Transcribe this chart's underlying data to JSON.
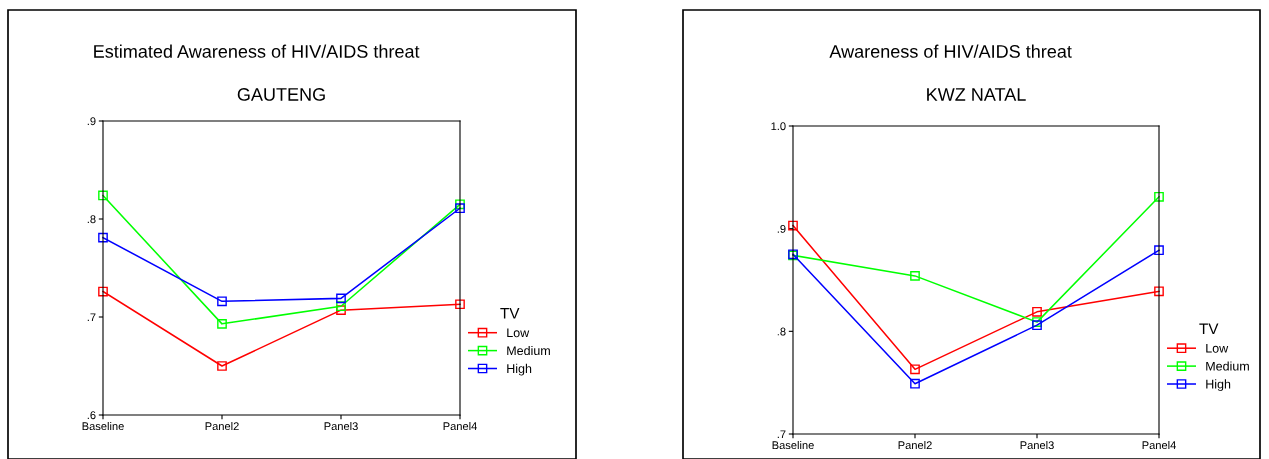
{
  "chart_data": [
    {
      "type": "line",
      "title": "Estimated Awareness of HIV/AIDS threat",
      "subtitle": "GAUTENG",
      "legend_title": "TV",
      "categories": [
        "Baseline",
        "Panel2",
        "Panel3",
        "Panel4"
      ],
      "ylim": [
        0.6,
        0.9
      ],
      "yticks": [
        {
          "value": 0.6,
          "label": ".6"
        },
        {
          "value": 0.7,
          "label": ".7"
        },
        {
          "value": 0.8,
          "label": ".8"
        },
        {
          "value": 0.9,
          "label": ".9"
        }
      ],
      "marker": "square",
      "grid": false,
      "legend": "right",
      "series": [
        {
          "name": "Low",
          "color": "#ff0000",
          "values": [
            0.726,
            0.65,
            0.707,
            0.713
          ]
        },
        {
          "name": "Medium",
          "color": "#00ff00",
          "values": [
            0.824,
            0.693,
            0.711,
            0.815
          ]
        },
        {
          "name": "High",
          "color": "#0000ff",
          "values": [
            0.781,
            0.716,
            0.719,
            0.811
          ]
        }
      ]
    },
    {
      "type": "line",
      "title": "Awareness of HIV/AIDS threat",
      "subtitle": "KWZ NATAL",
      "legend_title": "TV",
      "categories": [
        "Baseline",
        "Panel2",
        "Panel3",
        "Panel4"
      ],
      "ylim": [
        0.7,
        1.0
      ],
      "yticks": [
        {
          "value": 0.7,
          "label": ".7"
        },
        {
          "value": 0.8,
          "label": ".8"
        },
        {
          "value": 0.9,
          "label": ".9"
        },
        {
          "value": 1.0,
          "label": "1.0"
        }
      ],
      "marker": "square",
      "grid": false,
      "legend": "right",
      "series": [
        {
          "name": "Low",
          "color": "#ff0000",
          "values": [
            0.903,
            0.763,
            0.819,
            0.839
          ]
        },
        {
          "name": "Medium",
          "color": "#00ff00",
          "values": [
            0.874,
            0.854,
            0.809,
            0.931
          ]
        },
        {
          "name": "High",
          "color": "#0000ff",
          "values": [
            0.875,
            0.749,
            0.806,
            0.879
          ]
        }
      ]
    }
  ]
}
